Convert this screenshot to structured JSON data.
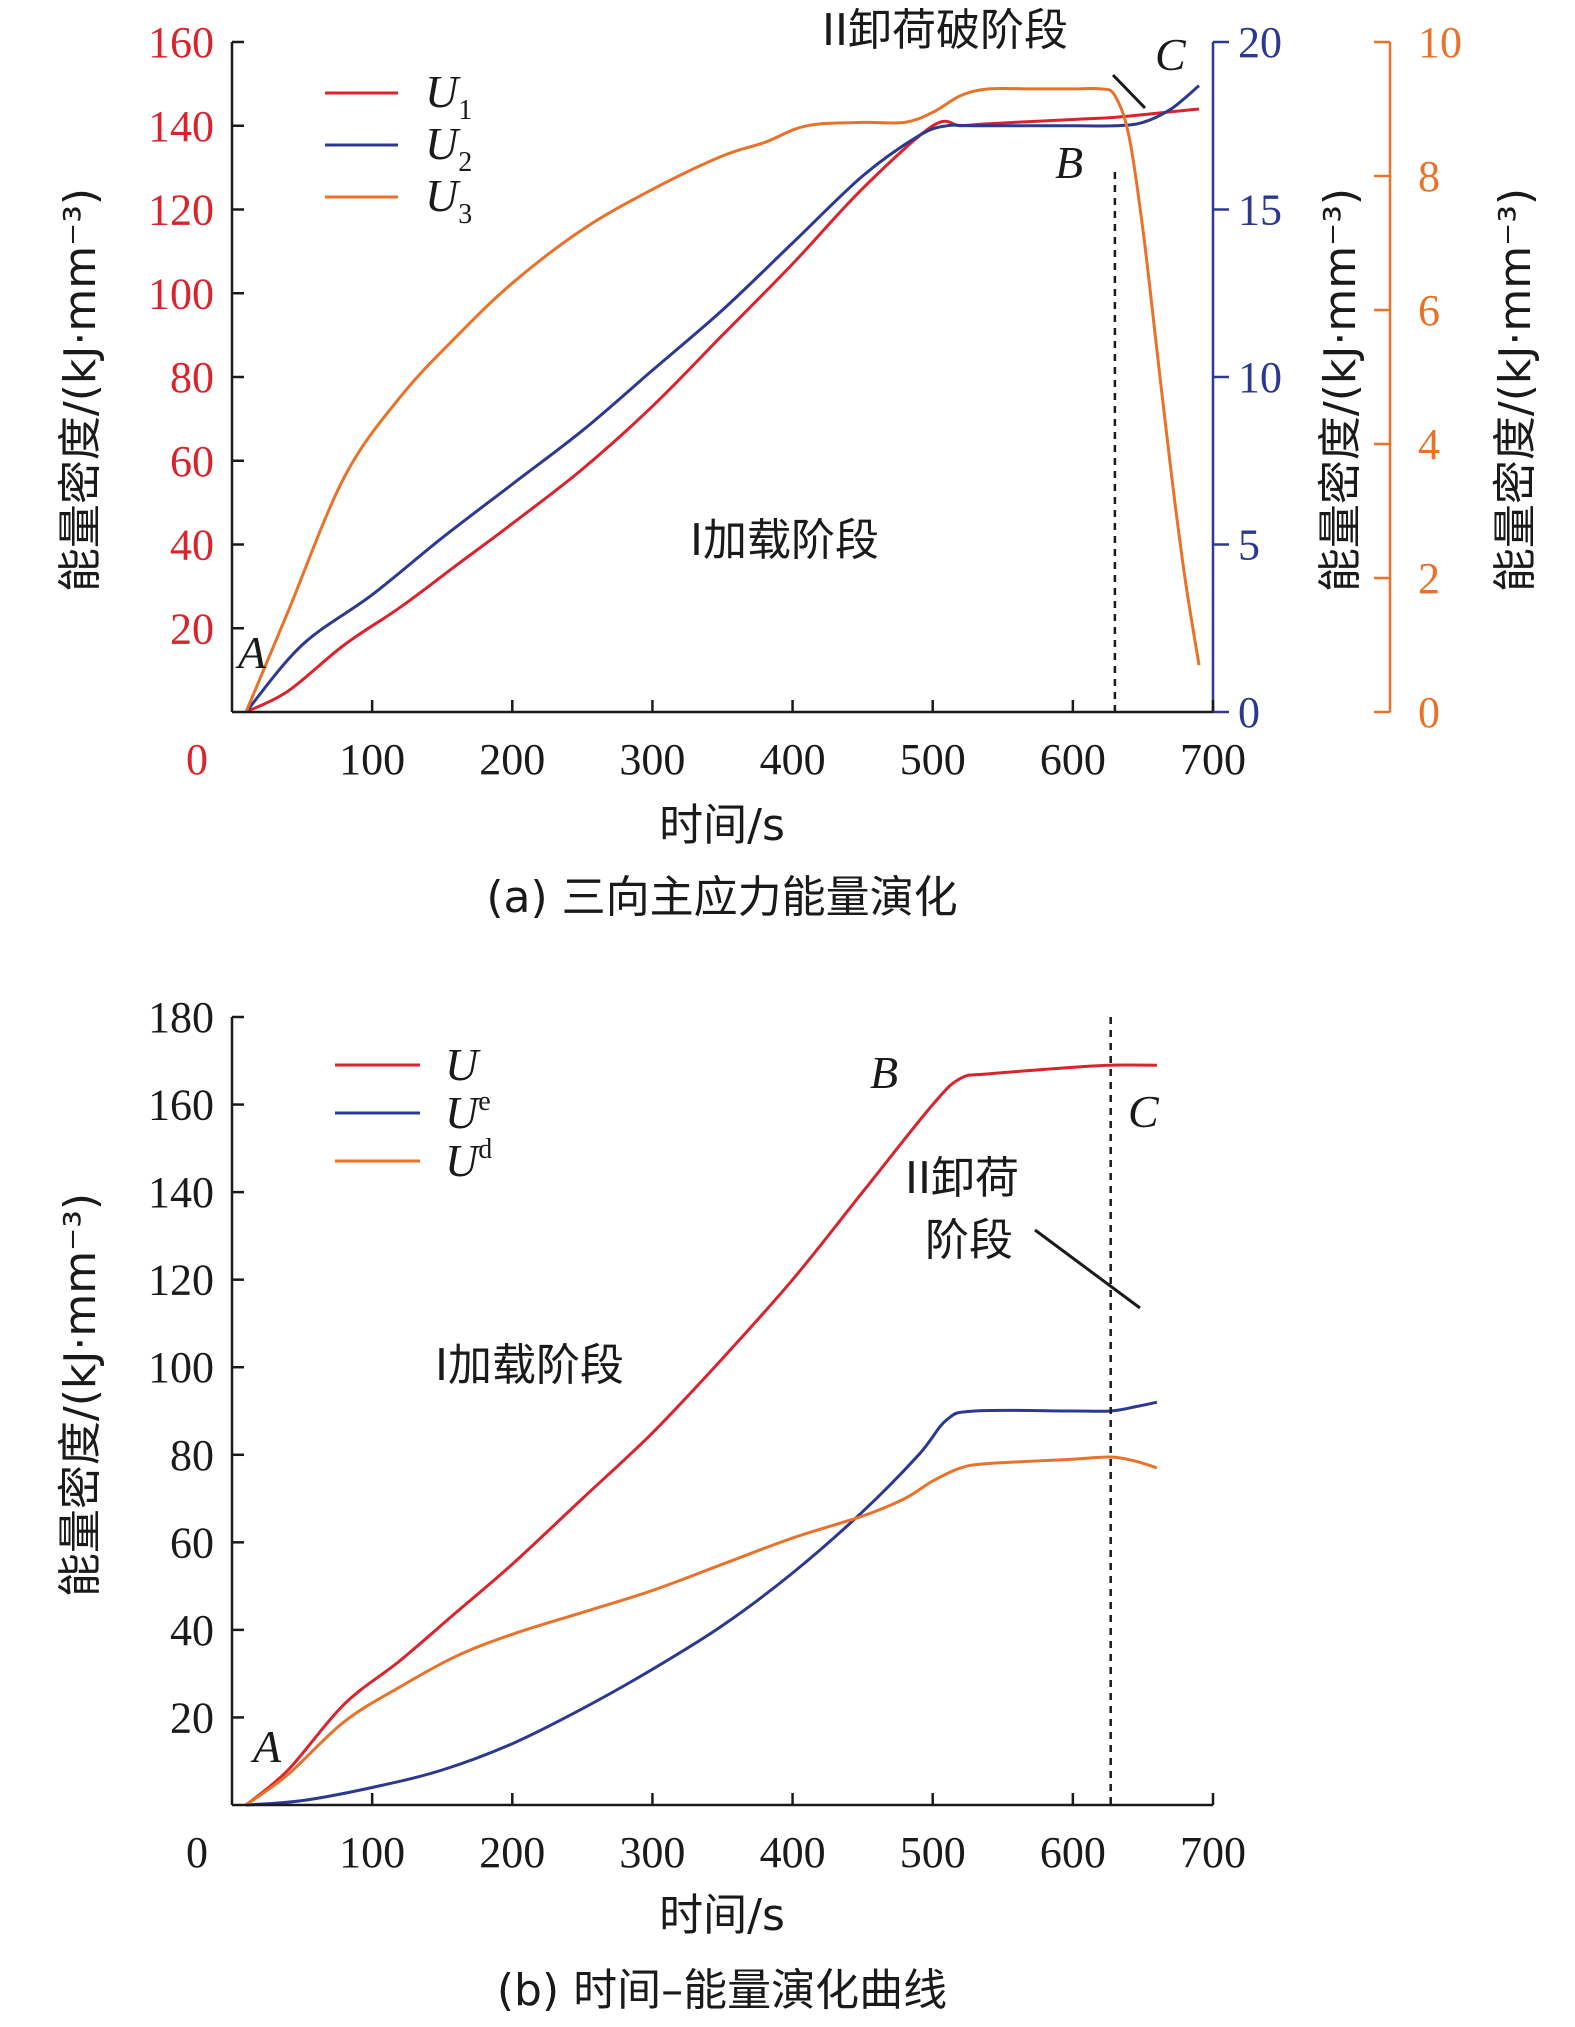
{
  "colors": {
    "red": "#d9232d",
    "blue": "#2b3990",
    "orange": "#e8722a",
    "black": "#1a1a1a"
  },
  "chart_data": [
    {
      "type": "line",
      "caption": "(a) 三向主应力能量演化",
      "xlabel": "时间/s",
      "x_ticks": [
        "100",
        "200",
        "300",
        "400",
        "500",
        "600",
        "700"
      ],
      "xlim": [
        0,
        700
      ],
      "y_left": {
        "label": "能量密度/(kJ·mm⁻³)",
        "ticks": [
          "20",
          "40",
          "60",
          "80",
          "100",
          "120",
          "140",
          "160"
        ],
        "zero_label": "0",
        "lim": [
          0,
          160
        ]
      },
      "y_right1": {
        "label": "能量密度/(kJ·mm⁻³)",
        "ticks": [
          "0",
          "5",
          "10",
          "15",
          "20"
        ],
        "lim": [
          0,
          20
        ]
      },
      "y_right2": {
        "label": "能量密度/(kJ·mm⁻³)",
        "ticks": [
          "0",
          "2",
          "4",
          "6",
          "8",
          "10"
        ],
        "lim": [
          0,
          10
        ]
      },
      "legend": [
        {
          "base": "U",
          "sub": "1",
          "axis": "left"
        },
        {
          "base": "U",
          "sub": "2",
          "axis": "right1"
        },
        {
          "base": "U",
          "sub": "3",
          "axis": "right2"
        }
      ],
      "annotations": {
        "stage1": "I加载阶段",
        "stage2": "II卸荷破阶段",
        "A": "A",
        "B": "B",
        "C": "C"
      },
      "vline_x": 630,
      "series": [
        {
          "name": "U1",
          "axis": "left",
          "x": [
            10,
            40,
            80,
            120,
            160,
            200,
            250,
            300,
            350,
            400,
            450,
            500,
            520,
            540,
            600,
            630,
            660,
            690
          ],
          "y": [
            0,
            5,
            16,
            25,
            35,
            45,
            58,
            73,
            90,
            107,
            125,
            140,
            140,
            140.5,
            141.5,
            142,
            143,
            144
          ]
        },
        {
          "name": "U2",
          "axis": "right1",
          "x": [
            10,
            50,
            100,
            150,
            200,
            250,
            300,
            350,
            400,
            450,
            490,
            510,
            530,
            600,
            630,
            650,
            670,
            690
          ],
          "y": [
            0,
            2,
            3.5,
            5.2,
            6.8,
            8.4,
            10.2,
            12,
            14,
            16,
            17.2,
            17.5,
            17.5,
            17.5,
            17.5,
            17.6,
            18,
            18.7
          ]
        },
        {
          "name": "U3",
          "axis": "right2",
          "x": [
            10,
            40,
            80,
            120,
            160,
            200,
            250,
            300,
            350,
            380,
            410,
            450,
            480,
            500,
            520,
            540,
            570,
            600,
            620,
            630,
            640,
            650,
            660,
            670,
            680,
            690
          ],
          "y": [
            0,
            1.5,
            3.5,
            4.7,
            5.6,
            6.4,
            7.2,
            7.8,
            8.3,
            8.5,
            8.75,
            8.8,
            8.8,
            8.95,
            9.2,
            9.3,
            9.3,
            9.3,
            9.3,
            9.2,
            8.6,
            7.2,
            5.4,
            3.6,
            2.0,
            0.7
          ]
        }
      ]
    },
    {
      "type": "line",
      "caption": "(b) 时间–能量演化曲线",
      "xlabel": "时间/s",
      "x_ticks": [
        "100",
        "200",
        "300",
        "400",
        "500",
        "600",
        "700"
      ],
      "xlim": [
        0,
        700
      ],
      "y_left": {
        "label": "能量密度/(kJ·mm⁻³)",
        "ticks": [
          "20",
          "40",
          "60",
          "80",
          "100",
          "120",
          "140",
          "160",
          "180"
        ],
        "zero_label": "0",
        "lim": [
          0,
          180
        ]
      },
      "legend": [
        {
          "base": "U",
          "sup": ""
        },
        {
          "base": "U",
          "sup": "e"
        },
        {
          "base": "U",
          "sup": "d"
        }
      ],
      "annotations": {
        "stage1": "I加载阶段",
        "stage2_line1": "II卸荷",
        "stage2_line2": "阶段",
        "A": "A",
        "B": "B",
        "C": "C"
      },
      "vline_x": 627,
      "series": [
        {
          "name": "U",
          "x": [
            10,
            40,
            80,
            120,
            160,
            200,
            250,
            300,
            350,
            400,
            450,
            500,
            520,
            540,
            600,
            627,
            660
          ],
          "y": [
            0,
            8,
            23,
            33,
            44,
            55,
            70,
            85,
            102,
            120,
            140,
            160,
            166,
            167,
            168.5,
            169,
            169
          ]
        },
        {
          "name": "Ue",
          "x": [
            10,
            50,
            100,
            150,
            200,
            250,
            300,
            350,
            400,
            450,
            490,
            510,
            530,
            600,
            627,
            645,
            660
          ],
          "y": [
            0,
            1,
            4,
            8,
            14,
            22,
            31,
            41,
            53,
            67,
            80,
            88,
            90,
            90,
            90,
            91,
            92
          ]
        },
        {
          "name": "Ud",
          "x": [
            10,
            40,
            80,
            120,
            160,
            200,
            250,
            300,
            350,
            400,
            450,
            480,
            500,
            520,
            540,
            600,
            627,
            645,
            660
          ],
          "y": [
            0,
            7,
            19,
            27,
            34,
            39,
            44,
            49,
            55,
            61,
            66,
            70,
            74,
            77,
            78,
            79,
            79.5,
            78.5,
            77
          ]
        }
      ]
    }
  ]
}
